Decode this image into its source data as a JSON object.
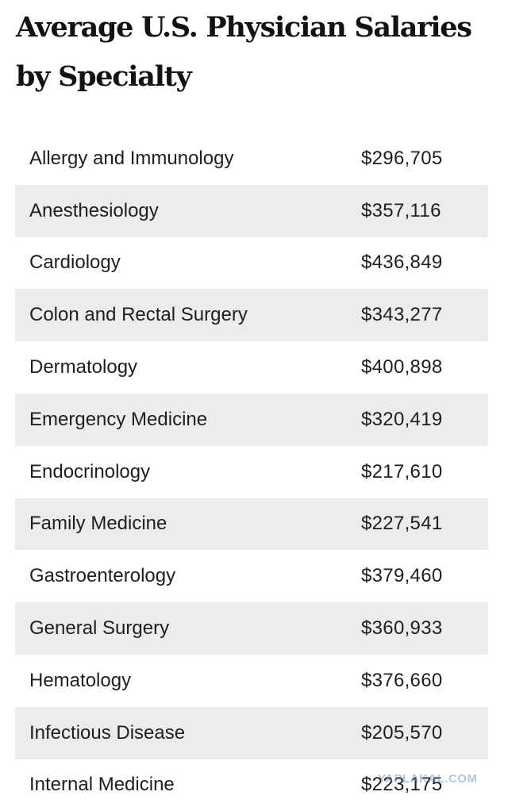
{
  "title": "Average U.S. Physician Salaries by Specialty",
  "rows": [
    {
      "specialty": "Allergy and Immunology",
      "salary": "$296,705"
    },
    {
      "specialty": "Anesthesiology",
      "salary": "$357,116"
    },
    {
      "specialty": "Cardiology",
      "salary": "$436,849"
    },
    {
      "specialty": "Colon and Rectal Surgery",
      "salary": "$343,277"
    },
    {
      "specialty": "Dermatology",
      "salary": "$400,898"
    },
    {
      "specialty": "Emergency Medicine",
      "salary": "$320,419"
    },
    {
      "specialty": "Endocrinology",
      "salary": "$217,610"
    },
    {
      "specialty": "Family Medicine",
      "salary": "$227,541"
    },
    {
      "specialty": "Gastroenterology",
      "salary": "$379,460"
    },
    {
      "specialty": "General Surgery",
      "salary": "$360,933"
    },
    {
      "specialty": "Hematology",
      "salary": "$376,660"
    },
    {
      "specialty": "Infectious Disease",
      "salary": "$205,570"
    },
    {
      "specialty": "Internal Medicine",
      "salary": "$223,175"
    }
  ],
  "watermark": "YAPLAKAL.COM",
  "colors": {
    "stripe": "#ececec",
    "text": "#1e1e1e",
    "title": "#121212"
  }
}
